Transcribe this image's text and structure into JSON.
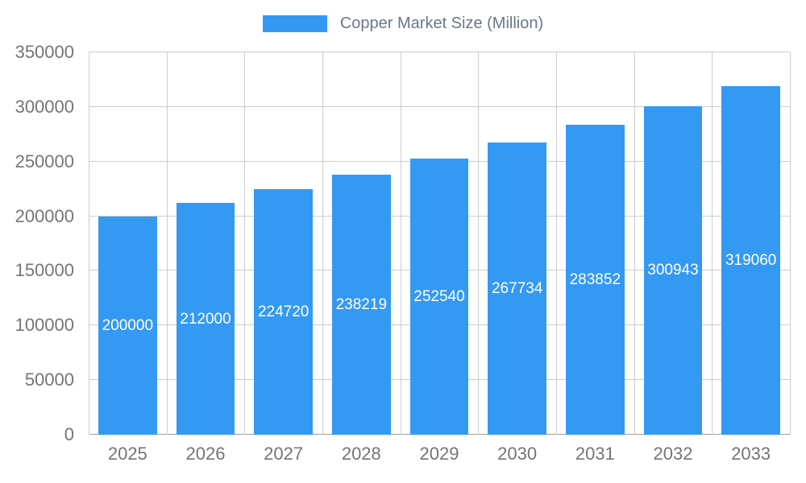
{
  "chart_data": {
    "type": "bar",
    "title": "Copper Market Size (Million)",
    "legend": {
      "label": "Copper Market Size (Million)",
      "position": "top"
    },
    "categories": [
      "2025",
      "2026",
      "2027",
      "2028",
      "2029",
      "2030",
      "2031",
      "2032",
      "2033"
    ],
    "values": [
      200000,
      212000,
      224720,
      238219,
      252540,
      267734,
      283852,
      300943,
      319060
    ],
    "xlabel": "",
    "ylabel": "",
    "ylim": [
      0,
      350000
    ],
    "yticks": [
      0,
      50000,
      100000,
      150000,
      200000,
      250000,
      300000,
      350000
    ],
    "grid": true,
    "bar_labels_inside": true,
    "colors": {
      "bar": "#3499f3",
      "bar_label": "#ffffff",
      "axis_text": "#757575",
      "legend_text": "#66788a",
      "gridline": "#cccccc",
      "baseline": "#9e9e9e",
      "background": "#ffffff"
    }
  }
}
